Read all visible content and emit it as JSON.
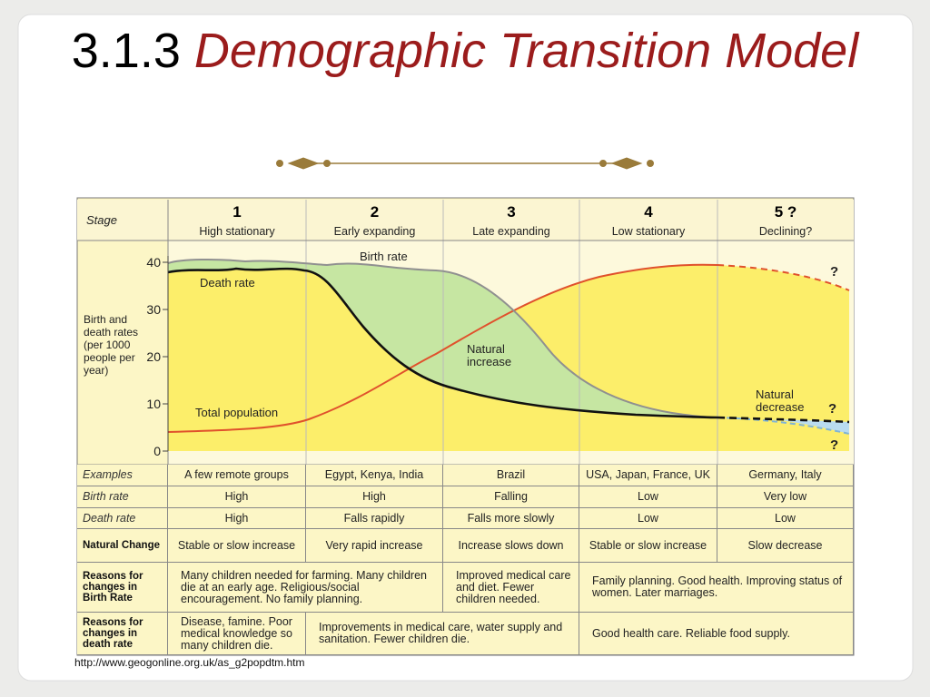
{
  "title": {
    "number": "3.1.3",
    "text": "Demographic Transition Model"
  },
  "diagram": {
    "stage_label": "Stage",
    "stages": [
      {
        "number": "1",
        "name": "High stationary"
      },
      {
        "number": "2",
        "name": "Early expanding"
      },
      {
        "number": "3",
        "name": "Late expanding"
      },
      {
        "number": "4",
        "name": "Low stationary"
      },
      {
        "number": "5 ?",
        "name": "Declining?"
      }
    ],
    "y_axis_label": "Birth and death rates (per 1000 people per year)",
    "yticks": [
      0,
      10,
      20,
      30,
      40
    ],
    "curve_labels": {
      "birth_rate": "Birth rate",
      "death_rate": "Death rate",
      "natural_increase": "Natural increase",
      "total_population": "Total population",
      "natural_decrease": "Natural decrease"
    },
    "unknown_markers": [
      "?",
      "?",
      "?"
    ]
  },
  "table": {
    "rows": [
      {
        "label": "Examples",
        "cells": [
          "A few remote groups",
          "Egypt, Kenya, India",
          "Brazil",
          "USA, Japan, France, UK",
          "Germany, Italy"
        ]
      },
      {
        "label": "Birth rate",
        "cells": [
          "High",
          "High",
          "Falling",
          "Low",
          "Very low"
        ]
      },
      {
        "label": "Death rate",
        "cells": [
          "High",
          "Falls rapidly",
          "Falls more slowly",
          "Low",
          "Low"
        ]
      },
      {
        "label": "Natural Change",
        "cells": [
          "Stable or slow increase",
          "Very rapid increase",
          "Increase slows down",
          "Stable or slow increase",
          "Slow decrease"
        ]
      },
      {
        "label": "Reasons for changes in Birth Rate",
        "cells": [
          "Many children needed for farming. Many children die at an early age. Religious/social encouragement. No family planning.",
          "Improved medical care and diet. Fewer children needed.",
          "Family planning. Good health. Improving status of women. Later marriages."
        ]
      },
      {
        "label": "Reasons for changes in death rate",
        "cells": [
          "Disease, famine. Poor medical knowledge so many children die.",
          "Improvements in medical care, water supply and sanitation. Fewer children die.",
          "Good health care. Reliable food supply."
        ]
      }
    ]
  },
  "source": "http://www.geogonline.org.uk/as_g2popdtm.htm"
}
